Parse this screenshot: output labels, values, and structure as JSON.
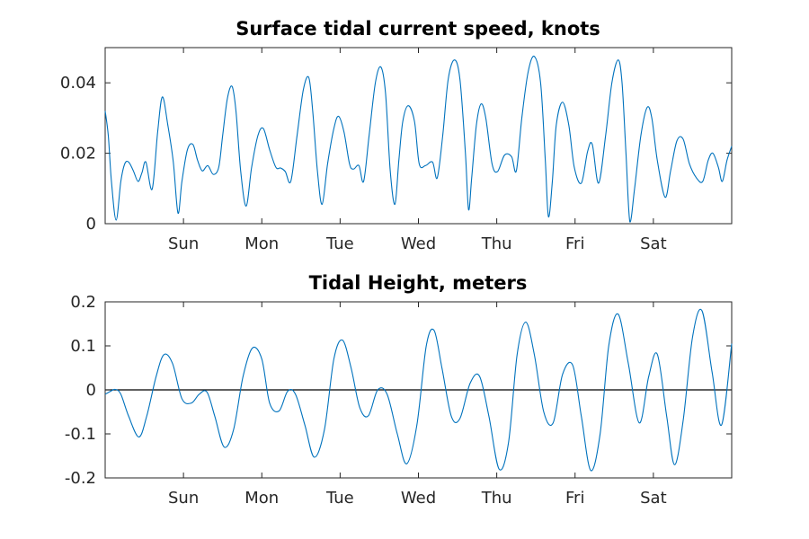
{
  "colors": {
    "series": "#0072BD",
    "axis": "#262626",
    "zero_line": "#000000"
  },
  "chart_data": [
    {
      "type": "line",
      "title": "Surface tidal current speed, knots",
      "xlabel": "",
      "ylabel": "",
      "xlim": [
        0,
        8
      ],
      "ylim": [
        0,
        0.05
      ],
      "y_ticks": [
        0,
        0.02,
        0.04
      ],
      "y_tick_labels": [
        "0",
        "0.02",
        "0.04"
      ],
      "x_tick_positions": [
        1,
        2,
        3,
        4,
        5,
        6,
        7
      ],
      "x_tick_labels": [
        "Sun",
        "Mon",
        "Tue",
        "Wed",
        "Thu",
        "Fri",
        "Sat"
      ],
      "grid": false,
      "series": [
        {
          "x": [
            0,
            0.04,
            0.08,
            0.14,
            0.2,
            0.25,
            0.3,
            0.36,
            0.42,
            0.47,
            0.52,
            0.6,
            0.67,
            0.73,
            0.8,
            0.87,
            0.93,
            0.98,
            1.05,
            1.12,
            1.18,
            1.24,
            1.31,
            1.38,
            1.45,
            1.5,
            1.56,
            1.62,
            1.67,
            1.73,
            1.8,
            1.87,
            1.95,
            2.02,
            2.1,
            2.18,
            2.24,
            2.3,
            2.37,
            2.45,
            2.53,
            2.6,
            2.65,
            2.71,
            2.77,
            2.84,
            2.92,
            2.98,
            3.05,
            3.12,
            3.17,
            3.24,
            3.3,
            3.37,
            3.45,
            3.52,
            3.58,
            3.64,
            3.7,
            3.75,
            3.8,
            3.87,
            3.95,
            4.01,
            4.09,
            4.18,
            4.24,
            4.31,
            4.38,
            4.46,
            4.53,
            4.6,
            4.64,
            4.68,
            4.74,
            4.8,
            4.86,
            4.94,
            5.01,
            5.1,
            5.19,
            5.25,
            5.32,
            5.4,
            5.48,
            5.56,
            5.62,
            5.66,
            5.71,
            5.76,
            5.84,
            5.92,
            5.99,
            6.08,
            6.16,
            6.22,
            6.3,
            6.39,
            6.47,
            6.55,
            6.6,
            6.65,
            6.7,
            6.76,
            6.84,
            6.92,
            6.98,
            7.05,
            7.15,
            7.22,
            7.3,
            7.38,
            7.46,
            7.55,
            7.63,
            7.7,
            7.76,
            7.83,
            7.88,
            7.94,
            8.0
          ],
          "y": [
            0.032,
            0.025,
            0.012,
            0.001,
            0.012,
            0.017,
            0.0175,
            0.015,
            0.012,
            0.0145,
            0.0175,
            0.0098,
            0.026,
            0.036,
            0.028,
            0.0175,
            0.003,
            0.012,
            0.021,
            0.0225,
            0.018,
            0.015,
            0.0165,
            0.014,
            0.016,
            0.025,
            0.0355,
            0.039,
            0.032,
            0.015,
            0.005,
            0.016,
            0.025,
            0.027,
            0.021,
            0.016,
            0.0158,
            0.0148,
            0.012,
            0.025,
            0.038,
            0.0415,
            0.032,
            0.015,
            0.0055,
            0.017,
            0.027,
            0.0305,
            0.026,
            0.017,
            0.0155,
            0.0165,
            0.012,
            0.025,
            0.04,
            0.0445,
            0.037,
            0.015,
            0.0055,
            0.018,
            0.029,
            0.0335,
            0.029,
            0.017,
            0.0165,
            0.0175,
            0.013,
            0.025,
            0.041,
            0.0465,
            0.041,
            0.02,
            0.004,
            0.013,
            0.028,
            0.034,
            0.03,
            0.017,
            0.0148,
            0.0195,
            0.019,
            0.015,
            0.03,
            0.043,
            0.0475,
            0.04,
            0.018,
            0.002,
            0.012,
            0.028,
            0.0345,
            0.028,
            0.016,
            0.0115,
            0.0205,
            0.0225,
            0.0115,
            0.025,
            0.04,
            0.0465,
            0.04,
            0.02,
            0.0005,
            0.01,
            0.025,
            0.033,
            0.03,
            0.018,
            0.0075,
            0.015,
            0.0235,
            0.024,
            0.017,
            0.013,
            0.012,
            0.018,
            0.02,
            0.016,
            0.012,
            0.018,
            0.022
          ]
        }
      ]
    },
    {
      "type": "line",
      "title": "Tidal Height, meters",
      "xlabel": "",
      "ylabel": "",
      "xlim": [
        0,
        8
      ],
      "ylim": [
        -0.2,
        0.2
      ],
      "y_ticks": [
        -0.2,
        -0.1,
        0,
        0.1,
        0.2
      ],
      "y_tick_labels": [
        "-0.2",
        "-0.1",
        "0",
        "0.1",
        "0.2"
      ],
      "x_tick_positions": [
        1,
        2,
        3,
        4,
        5,
        6,
        7
      ],
      "x_tick_labels": [
        "Sun",
        "Mon",
        "Tue",
        "Wed",
        "Thu",
        "Fri",
        "Sat"
      ],
      "reference_line_y": 0,
      "grid": false,
      "series": [
        {
          "x": [
            0,
            0.06,
            0.13,
            0.2,
            0.3,
            0.43,
            0.53,
            0.65,
            0.75,
            0.86,
            0.98,
            1.1,
            1.2,
            1.3,
            1.4,
            1.52,
            1.64,
            1.76,
            1.88,
            2.0,
            2.1,
            2.22,
            2.33,
            2.43,
            2.55,
            2.67,
            2.8,
            2.92,
            3.03,
            3.14,
            3.25,
            3.36,
            3.48,
            3.6,
            3.73,
            3.85,
            3.98,
            4.1,
            4.2,
            4.3,
            4.42,
            4.53,
            4.66,
            4.78,
            4.9,
            5.03,
            5.15,
            5.26,
            5.37,
            5.48,
            5.6,
            5.72,
            5.84,
            5.97,
            6.08,
            6.2,
            6.32,
            6.43,
            6.55,
            6.68,
            6.82,
            6.94,
            7.05,
            7.17,
            7.27,
            7.38,
            7.5,
            7.62,
            7.75,
            7.87,
            8.0
          ],
          "y": [
            -0.01,
            -0.004,
            0.001,
            -0.01,
            -0.06,
            -0.107,
            -0.06,
            0.03,
            0.08,
            0.06,
            -0.02,
            -0.03,
            -0.01,
            -0.005,
            -0.06,
            -0.13,
            -0.09,
            0.03,
            0.095,
            0.07,
            -0.03,
            -0.048,
            -0.003,
            -0.01,
            -0.08,
            -0.153,
            -0.09,
            0.07,
            0.113,
            0.05,
            -0.04,
            -0.059,
            0.0,
            -0.01,
            -0.1,
            -0.168,
            -0.08,
            0.1,
            0.135,
            0.05,
            -0.06,
            -0.065,
            0.015,
            0.031,
            -0.06,
            -0.18,
            -0.12,
            0.08,
            0.154,
            0.08,
            -0.05,
            -0.075,
            0.035,
            0.056,
            -0.06,
            -0.183,
            -0.1,
            0.1,
            0.172,
            0.06,
            -0.075,
            0.03,
            0.081,
            -0.06,
            -0.17,
            -0.07,
            0.12,
            0.18,
            0.04,
            -0.08,
            0.105
          ]
        }
      ]
    }
  ]
}
